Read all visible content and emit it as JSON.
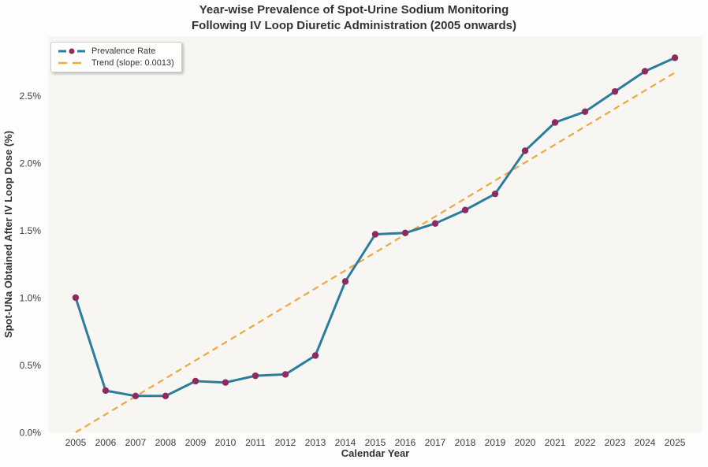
{
  "figure": {
    "title_line1": "Year-wise Prevalence of Spot-Urine Sodium Monitoring",
    "title_line2": "Following IV Loop Diuretic Administration (2005 onwards)"
  },
  "legend": {
    "position": "upper-left",
    "items": [
      {
        "label": "Prevalence Rate",
        "swatch": "line-with-marker",
        "line_color": "#2b7d9e",
        "marker_color": "#8e2a5c"
      },
      {
        "label": "Trend (slope: 0.0013)",
        "swatch": "dashed-line",
        "line_color": "#eda83e"
      }
    ]
  },
  "colors": {
    "figure_bg": "#fdfdfc",
    "plot_bg": "#f7f6f3",
    "line": "#2b7d9e",
    "marker": "#8e2a5c",
    "trend": "#eda83e",
    "tick_text": "#3d3d3d",
    "title_text": "#333333"
  },
  "chart_data": {
    "type": "line",
    "title": "Year-wise Prevalence of Spot-Urine Sodium Monitoring Following IV Loop Diuretic Administration (2005 onwards)",
    "xlabel": "Calendar Year",
    "ylabel": "Spot-UNa Obtained After IV Loop Dose (%)",
    "x": [
      2005,
      2006,
      2007,
      2008,
      2009,
      2010,
      2011,
      2012,
      2013,
      2014,
      2015,
      2016,
      2017,
      2018,
      2019,
      2020,
      2021,
      2022,
      2023,
      2024,
      2025
    ],
    "series": [
      {
        "name": "Prevalence Rate",
        "values": [
          1.0,
          0.31,
          0.27,
          0.27,
          0.38,
          0.37,
          0.42,
          0.43,
          0.57,
          1.12,
          1.47,
          1.48,
          1.55,
          1.65,
          1.77,
          2.09,
          2.3,
          2.38,
          2.53,
          2.68,
          2.78
        ],
        "units": "percent",
        "color": "#2b7d9e",
        "marker_color": "#8e2a5c",
        "marker": "circle"
      }
    ],
    "trend": {
      "name": "Trend (slope: 0.0013)",
      "slope": 0.0013,
      "x_start": 2005,
      "y_start": 0.0,
      "x_end": 2025,
      "y_end": 2.67,
      "style": "dashed",
      "color": "#eda83e"
    },
    "xlim": [
      2004.08,
      2025.92
    ],
    "ylim": [
      0,
      2.94
    ],
    "yticks": {
      "values": [
        0,
        0.5,
        1.0,
        1.5,
        2.0,
        2.5
      ],
      "labels": [
        "0.0%",
        "0.5%",
        "1.0%",
        "1.5%",
        "2.0%",
        "2.5%"
      ]
    },
    "grid": false,
    "legend_position": "upper-left"
  }
}
